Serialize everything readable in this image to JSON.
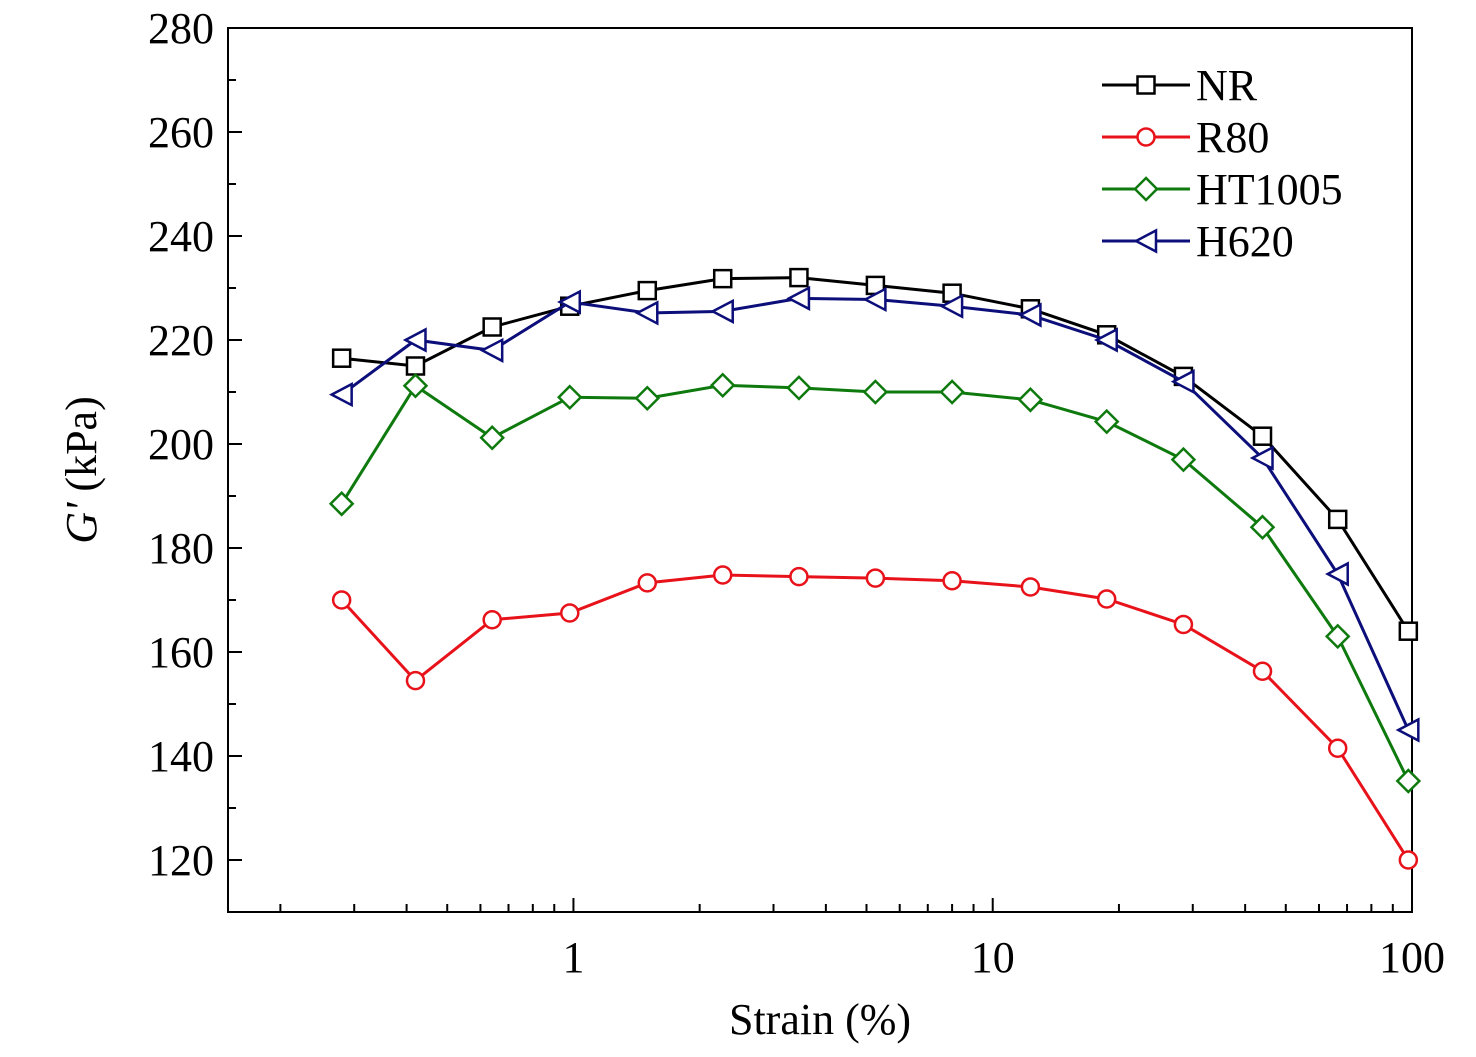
{
  "chart_data": {
    "type": "line",
    "xscale": "log",
    "xlim": [
      0.15,
      100
    ],
    "ylim": [
      110,
      280
    ],
    "xlabel": "Strain (%)",
    "ylabel_italic": "G'",
    "ylabel_rest": " (kPa)",
    "x_ticks": [
      1,
      10,
      100
    ],
    "x_tick_labels": [
      "1",
      "10",
      "100"
    ],
    "y_ticks": [
      120,
      140,
      160,
      180,
      200,
      220,
      240,
      260,
      280
    ],
    "y_tick_labels": [
      "120",
      "140",
      "160",
      "180",
      "200",
      "220",
      "240",
      "260",
      "280"
    ],
    "legend_position": "top-right",
    "grid": false,
    "x": [
      0.28,
      0.42,
      0.64,
      0.98,
      1.5,
      2.27,
      3.45,
      5.25,
      8.0,
      12.3,
      18.7,
      28.5,
      44,
      66.5,
      98
    ],
    "series": [
      {
        "name": "NR",
        "color": "#000000",
        "marker": "square",
        "values": [
          216.5,
          215,
          222.5,
          226.5,
          229.5,
          231.8,
          232,
          230.5,
          229,
          226,
          221,
          213,
          201.5,
          185.5,
          164
        ]
      },
      {
        "name": "R80",
        "color": "#e8121a",
        "marker": "circle",
        "values": [
          170,
          154.5,
          166.2,
          167.5,
          173.3,
          174.8,
          174.5,
          174.2,
          173.7,
          172.5,
          170.2,
          165.3,
          156.3,
          141.5,
          120
        ]
      },
      {
        "name": "HT1005",
        "color": "#0e7a0e",
        "marker": "diamond",
        "values": [
          188.5,
          211.2,
          201.2,
          209,
          208.8,
          211.3,
          210.8,
          210,
          210,
          208.5,
          204.3,
          197,
          184,
          163,
          135.2
        ]
      },
      {
        "name": "H620",
        "color": "#0c0e7a",
        "marker": "triangle-left",
        "values": [
          209.5,
          220,
          218,
          227.3,
          225.2,
          225.5,
          228,
          227.8,
          226.5,
          224.8,
          220,
          212,
          197.3,
          175,
          145
        ]
      }
    ]
  }
}
